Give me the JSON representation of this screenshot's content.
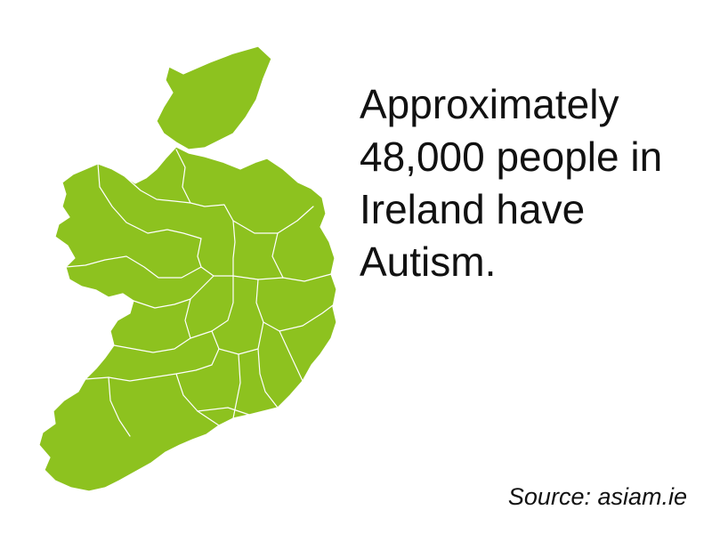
{
  "headline": {
    "lines": [
      "Approximately",
      "48,000 people in",
      "Ireland have",
      "Autism."
    ]
  },
  "source": "Source: asiam.ie",
  "map": {
    "region": "Ireland",
    "fill_color": "#8dc21f",
    "border_color": "#ffffff"
  }
}
